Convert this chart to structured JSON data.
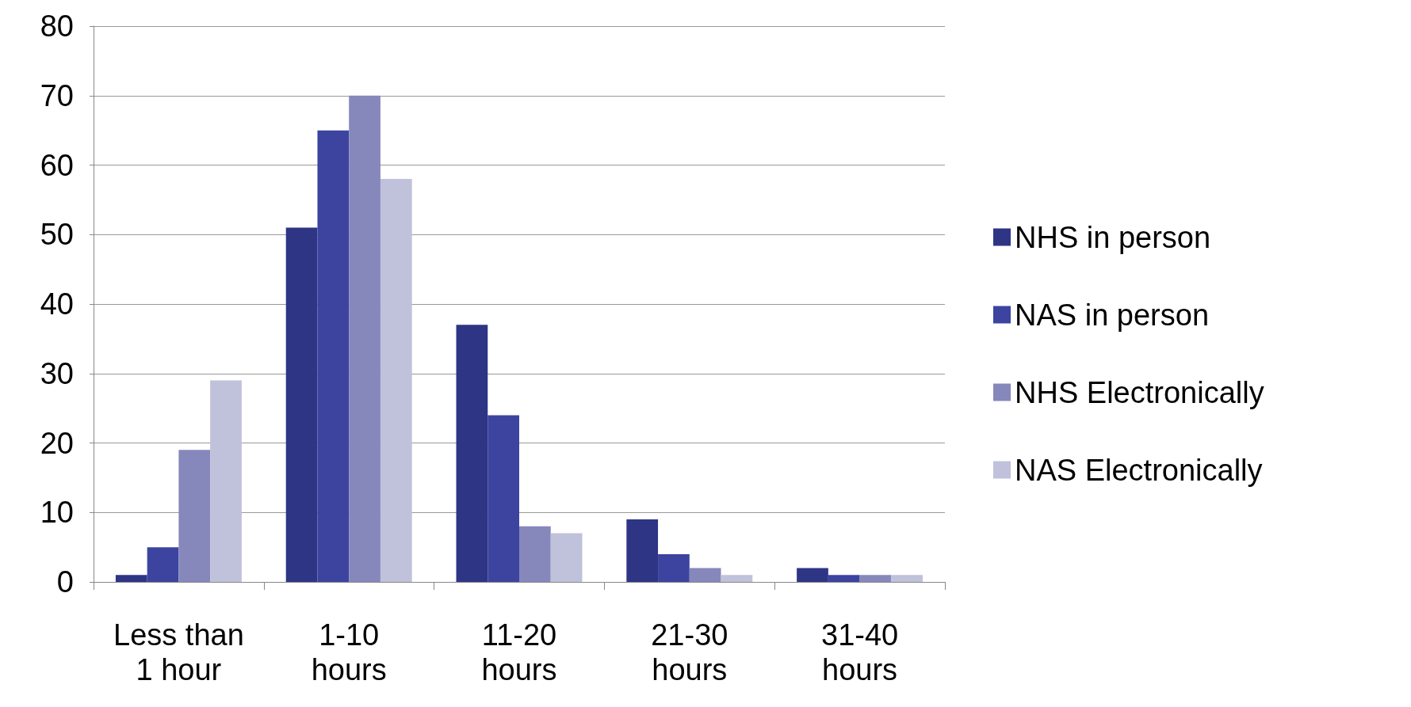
{
  "chart_data": {
    "type": "bar",
    "categories": [
      "Less than\n1 hour",
      "1-10\nhours",
      "11-20\nhours",
      "21-30\nhours",
      "31-40\nhours"
    ],
    "series": [
      {
        "name": "NHS in person",
        "color": "#2e3585",
        "values": [
          1,
          51,
          37,
          9,
          2
        ]
      },
      {
        "name": "NAS in person",
        "color": "#3c44a0",
        "values": [
          5,
          65,
          24,
          4,
          1
        ]
      },
      {
        "name": "NHS Electronically",
        "color": "#8688bb",
        "values": [
          19,
          70,
          8,
          2,
          1
        ]
      },
      {
        "name": "NAS Electronically",
        "color": "#c0c1da",
        "values": [
          29,
          58,
          7,
          1,
          1
        ]
      }
    ],
    "ylim": [
      0,
      80
    ],
    "yticks": [
      0,
      10,
      20,
      30,
      40,
      50,
      60,
      70,
      80
    ],
    "grid": "y",
    "legend": "right"
  }
}
